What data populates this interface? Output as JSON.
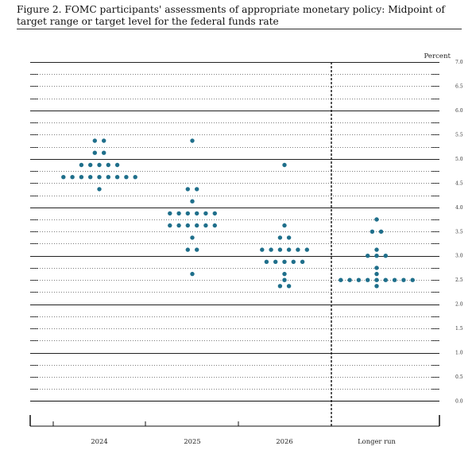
{
  "title": "Figure 2.  FOMC participants' assessments of appropriate monetary policy:  Midpoint of target range or target level for the federal funds rate",
  "chart_data": {
    "type": "scatter",
    "subtype": "dot-plot",
    "title": "Figure 2.  FOMC participants' assessments of appropriate monetary policy:  Midpoint of target range or target level for the federal funds rate",
    "ylabel": "Percent",
    "ylim": [
      0,
      7
    ],
    "y_ticks": [
      "0.0",
      "0.5",
      "1.0",
      "1.5",
      "2.0",
      "2.5",
      "3.0",
      "3.5",
      "4.0",
      "4.5",
      "5.0",
      "5.5",
      "6.0",
      "6.5",
      "7.0"
    ],
    "categories": [
      "2024",
      "2025",
      "2026",
      "Longer run"
    ],
    "grid": "major solid at whole percents, dotted at 0.25 steps",
    "dot_color": "#1f6f8b",
    "separator_before": "Longer run",
    "series": [
      {
        "name": "2024",
        "dots": [
          {
            "y": 5.375,
            "count": 2
          },
          {
            "y": 5.125,
            "count": 2
          },
          {
            "y": 4.875,
            "count": 5
          },
          {
            "y": 4.625,
            "count": 9
          },
          {
            "y": 4.375,
            "count": 1
          }
        ]
      },
      {
        "name": "2025",
        "dots": [
          {
            "y": 5.375,
            "count": 1
          },
          {
            "y": 4.375,
            "count": 2
          },
          {
            "y": 4.125,
            "count": 1
          },
          {
            "y": 3.875,
            "count": 6
          },
          {
            "y": 3.625,
            "count": 6
          },
          {
            "y": 3.375,
            "count": 1
          },
          {
            "y": 3.125,
            "count": 2
          },
          {
            "y": 2.625,
            "count": 1
          }
        ]
      },
      {
        "name": "2026",
        "dots": [
          {
            "y": 4.875,
            "count": 1
          },
          {
            "y": 3.625,
            "count": 1
          },
          {
            "y": 3.375,
            "count": 2
          },
          {
            "y": 3.125,
            "count": 6
          },
          {
            "y": 2.875,
            "count": 5
          },
          {
            "y": 2.625,
            "count": 1
          },
          {
            "y": 2.5,
            "count": 1
          },
          {
            "y": 2.375,
            "count": 2
          }
        ]
      },
      {
        "name": "Longer run",
        "dots": [
          {
            "y": 3.75,
            "count": 1
          },
          {
            "y": 3.5,
            "count": 2
          },
          {
            "y": 3.125,
            "count": 1
          },
          {
            "y": 3.0,
            "count": 3
          },
          {
            "y": 2.75,
            "count": 1
          },
          {
            "y": 2.625,
            "count": 1
          },
          {
            "y": 2.5,
            "count": 9
          },
          {
            "y": 2.375,
            "count": 1
          }
        ]
      }
    ]
  }
}
